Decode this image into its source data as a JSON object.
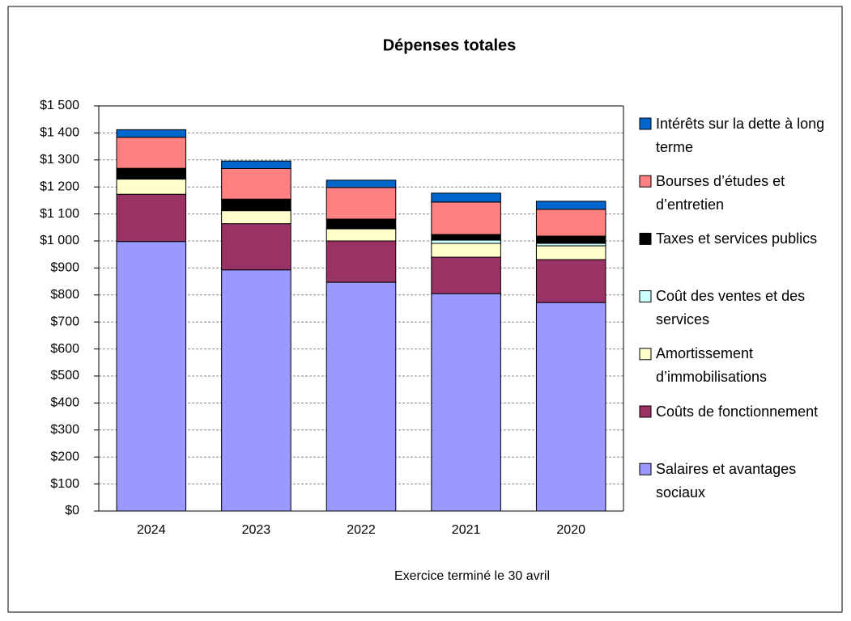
{
  "chart_data": {
    "type": "stacked_bar",
    "title": "Dépenses totales",
    "x_label": "Exercice terminé le 30 avril",
    "categories": [
      "2024",
      "2023",
      "2022",
      "2021",
      "2020"
    ],
    "series": [
      {
        "name": "Salaires et avantages sociaux",
        "color": "#9999ff",
        "values": [
          998,
          893,
          847,
          805,
          772
        ]
      },
      {
        "name": "Coûts de fonctionnement",
        "color": "#993366",
        "values": [
          175,
          171,
          153,
          135,
          159
        ]
      },
      {
        "name": "Amortissement d’immobilisations",
        "color": "#ffffcc",
        "values": [
          56,
          48,
          45,
          51,
          51
        ]
      },
      {
        "name": "Coût des ventes et des services",
        "color": "#ccffff",
        "values": [
          2,
          3,
          2,
          12,
          9
        ]
      },
      {
        "name": "Taxes et services publics",
        "color": "#000000",
        "values": [
          38,
          40,
          34,
          21,
          27
        ]
      },
      {
        "name": "Bourses d’études et d’entretien",
        "color": "#ff8080",
        "values": [
          115,
          113,
          117,
          120,
          99
        ]
      },
      {
        "name": "Intérêts sur la dette à long terme",
        "color": "#0066cc",
        "values": [
          28,
          28,
          27,
          33,
          30
        ]
      }
    ],
    "ylim": [
      0,
      1500
    ],
    "yticks": [
      {
        "value": 0,
        "label": "$0"
      },
      {
        "value": 100,
        "label": "$100"
      },
      {
        "value": 200,
        "label": "$200"
      },
      {
        "value": 300,
        "label": "$300"
      },
      {
        "value": 400,
        "label": "$400"
      },
      {
        "value": 500,
        "label": "$500"
      },
      {
        "value": 600,
        "label": "$600"
      },
      {
        "value": 700,
        "label": "$700"
      },
      {
        "value": 800,
        "label": "$800"
      },
      {
        "value": 900,
        "label": "$900"
      },
      {
        "value": 1000,
        "label": "$1 000"
      },
      {
        "value": 1100,
        "label": "$1 100"
      },
      {
        "value": 1200,
        "label": "$1 200"
      },
      {
        "value": 1300,
        "label": "$1 300"
      },
      {
        "value": 1400,
        "label": "$1 400"
      },
      {
        "value": 1500,
        "label": "$1 500"
      }
    ],
    "grid": true,
    "legend": "right"
  }
}
